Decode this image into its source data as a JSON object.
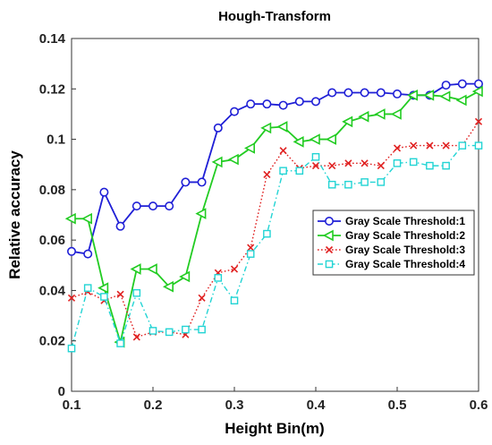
{
  "chart_data": {
    "type": "line",
    "title": "Hough-Transform",
    "xlabel": "Height Bin(m)",
    "ylabel": "Relative accuracy",
    "xlim": [
      0.1,
      0.6
    ],
    "ylim": [
      0,
      0.14
    ],
    "xticks": [
      "0.1",
      "0.2",
      "0.3",
      "0.4",
      "0.5",
      "0.6"
    ],
    "yticks": [
      "0",
      "0.02",
      "0.04",
      "0.06",
      "0.08",
      "0.1",
      "0.12",
      "0.14"
    ],
    "grid": false,
    "legend_position": "center-right",
    "x": [
      0.1,
      0.12,
      0.14,
      0.16,
      0.18,
      0.2,
      0.22,
      0.24,
      0.26,
      0.28,
      0.3,
      0.32,
      0.34,
      0.36,
      0.38,
      0.4,
      0.42,
      0.44,
      0.46,
      0.48,
      0.5,
      0.52,
      0.54,
      0.56,
      0.58,
      0.6
    ],
    "series": [
      {
        "name": "Gray Scale Threshold:1",
        "color": "#1f1fd6",
        "marker": "circle",
        "line": "solid",
        "values": [
          0.0555,
          0.0545,
          0.079,
          0.0655,
          0.0735,
          0.0735,
          0.0735,
          0.083,
          0.083,
          0.1045,
          0.111,
          0.114,
          0.114,
          0.1135,
          0.115,
          0.115,
          0.1185,
          0.1185,
          0.1185,
          0.1185,
          0.118,
          0.1175,
          0.1175,
          0.1215,
          0.122,
          0.122
        ]
      },
      {
        "name": "Gray Scale Threshold:2",
        "color": "#22cc22",
        "marker": "triangle-left",
        "line": "solid",
        "values": [
          0.0685,
          0.0685,
          0.041,
          0.0195,
          0.0485,
          0.0485,
          0.0415,
          0.0455,
          0.0705,
          0.091,
          0.092,
          0.0965,
          0.1045,
          0.105,
          0.099,
          0.1,
          0.1,
          0.107,
          0.109,
          0.11,
          0.11,
          0.1175,
          0.1175,
          0.117,
          0.1155,
          0.119
        ]
      },
      {
        "name": "Gray Scale Threshold:3",
        "color": "#e02020",
        "marker": "x",
        "line": "dotted",
        "values": [
          0.037,
          0.0395,
          0.036,
          0.0385,
          0.0215,
          0.0235,
          0.0235,
          0.0225,
          0.037,
          0.047,
          0.0485,
          0.057,
          0.086,
          0.0955,
          0.0885,
          0.0895,
          0.0895,
          0.0905,
          0.0905,
          0.0895,
          0.0965,
          0.0975,
          0.0975,
          0.0975,
          0.0975,
          0.107
        ]
      },
      {
        "name": "Gray Scale Threshold:4",
        "color": "#22d4d4",
        "marker": "square",
        "line": "dashdot",
        "values": [
          0.017,
          0.041,
          0.0375,
          0.019,
          0.039,
          0.024,
          0.0235,
          0.0245,
          0.0245,
          0.045,
          0.036,
          0.0545,
          0.0625,
          0.0875,
          0.0875,
          0.093,
          0.082,
          0.082,
          0.083,
          0.083,
          0.0905,
          0.091,
          0.0895,
          0.0895,
          0.0975,
          0.0975
        ]
      }
    ]
  }
}
